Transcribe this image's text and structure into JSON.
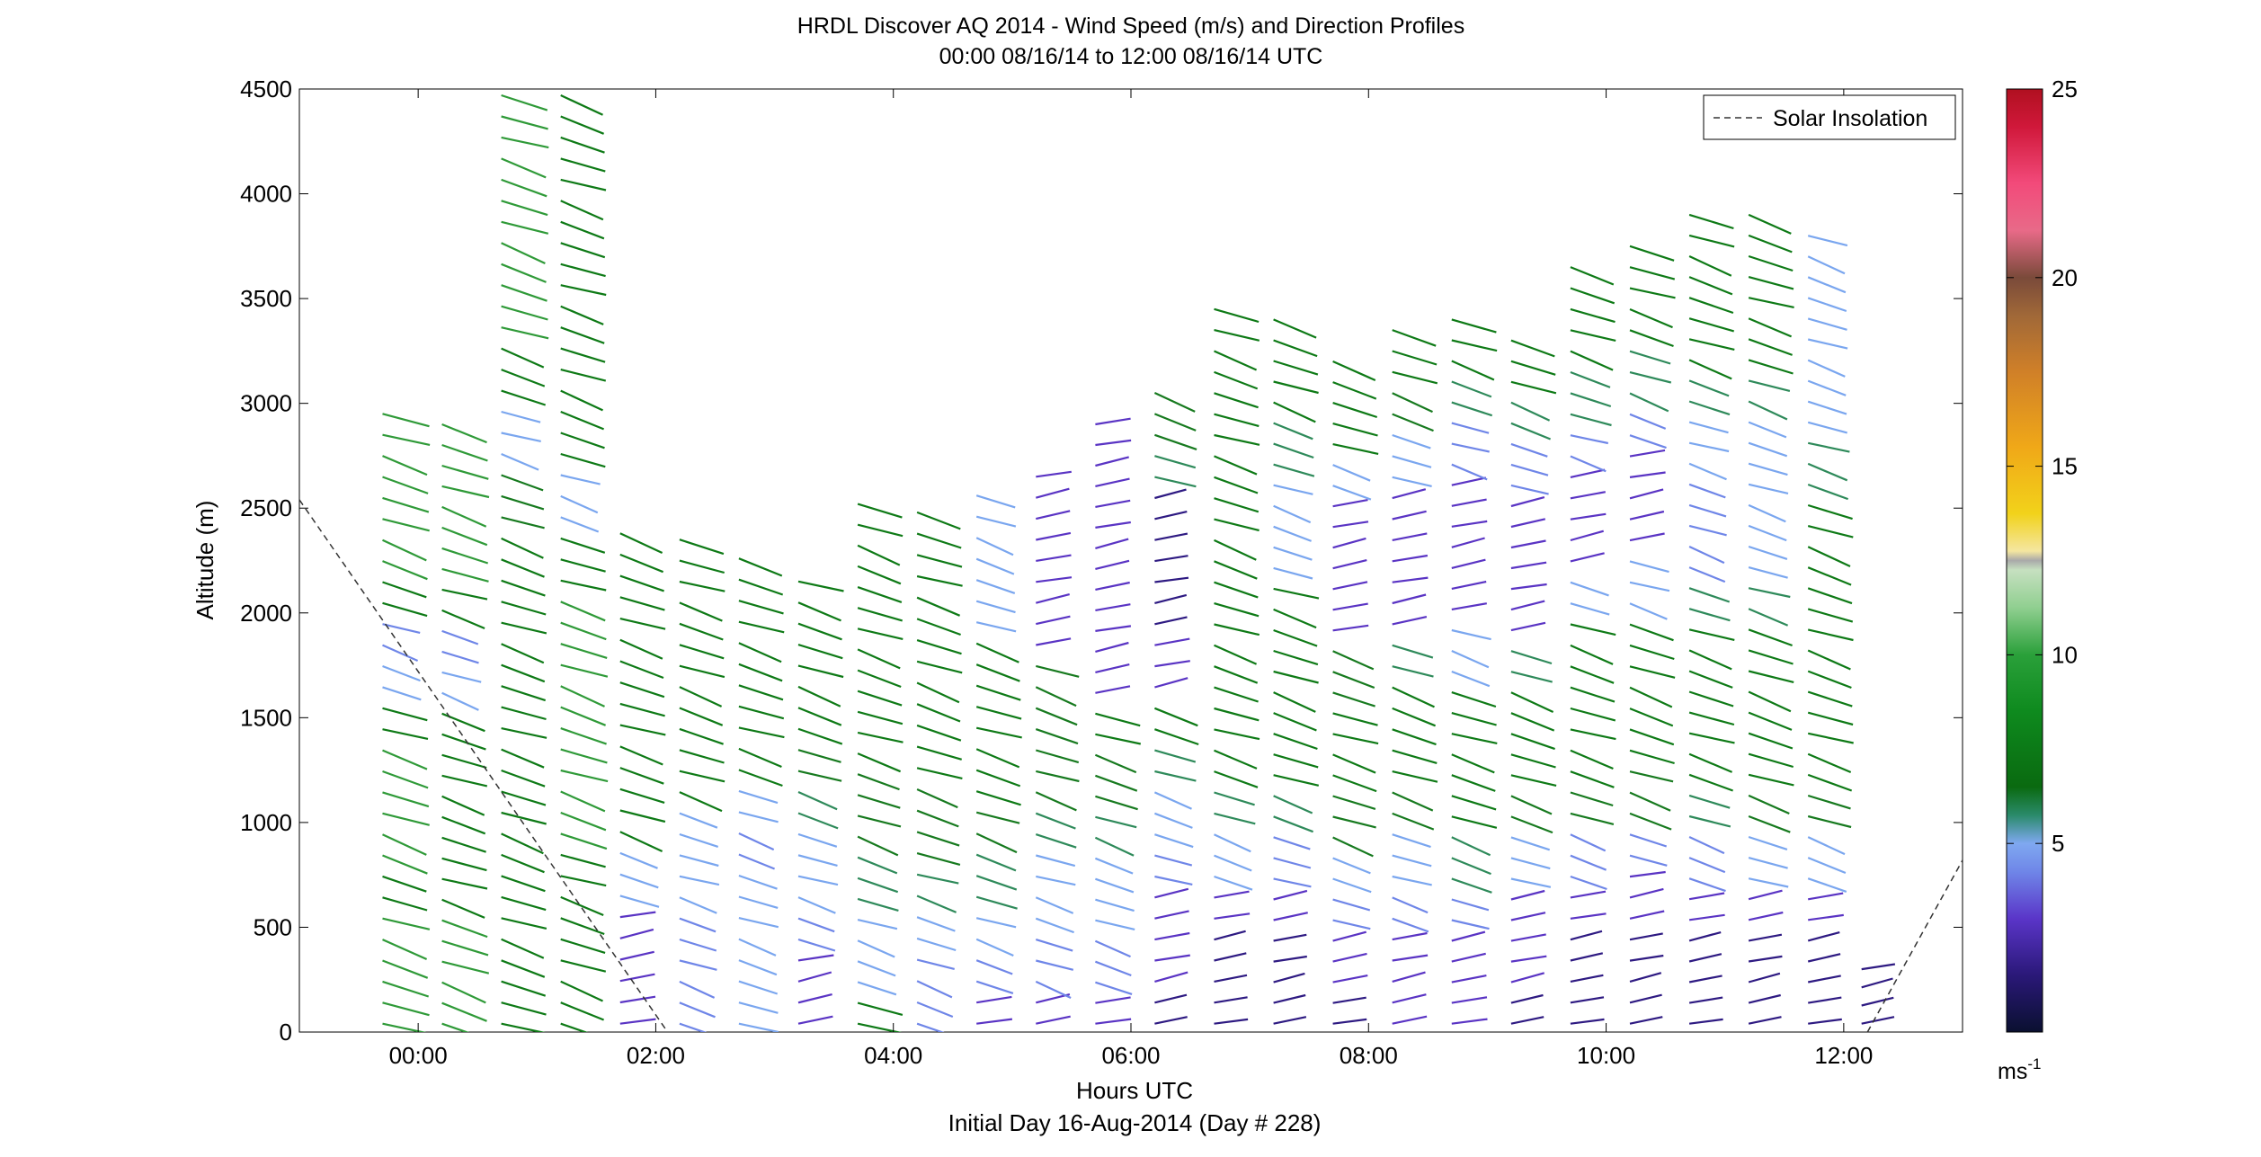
{
  "chart_data": {
    "type": "wind-barb-profile",
    "title": "HRDL Discover AQ 2014 - Wind Speed (m/s) and Direction Profiles",
    "subtitle": "00:00 08/16/14 to 12:00 08/16/14  UTC",
    "xlabel": "Hours UTC",
    "xlabel2": "Initial Day 16-Aug-2014 (Day # 228)",
    "ylabel": "Altitude (m)",
    "xlim": [
      -1.0,
      13.0
    ],
    "ylim": [
      0,
      4500
    ],
    "x_ticks": [
      0,
      2,
      4,
      6,
      8,
      10,
      12
    ],
    "x_tick_labels": [
      "00:00",
      "02:00",
      "04:00",
      "06:00",
      "08:00",
      "10:00",
      "12:00"
    ],
    "y_ticks": [
      0,
      500,
      1000,
      1500,
      2000,
      2500,
      3000,
      3500,
      4000,
      4500
    ],
    "y_tick_labels": [
      "0",
      "500",
      "1000",
      "1500",
      "2000",
      "2500",
      "3000",
      "3500",
      "4000",
      "4500"
    ],
    "legend": {
      "label": "Solar Insolation",
      "position": "top-right",
      "style": "dashed"
    },
    "colorbar": {
      "range": [
        0,
        25
      ],
      "ticks": [
        5,
        10,
        15,
        20,
        25
      ],
      "tick_labels": [
        "5",
        "10",
        "15",
        "20",
        "25"
      ],
      "unit_label": "ms",
      "unit_exp": "-1"
    },
    "solar_insolation": {
      "x": [
        -1.0,
        2.1,
        12.2,
        13.0
      ],
      "y": [
        2540,
        0,
        0,
        820
      ]
    },
    "profiles": [
      {
        "t": -0.3,
        "top": 2950,
        "speeds": [
          9,
          9,
          9,
          8,
          9,
          9,
          9,
          8,
          5,
          4,
          8,
          9,
          9,
          9,
          9
        ]
      },
      {
        "t": 0.2,
        "top": 2900,
        "speeds": [
          9,
          9,
          9,
          8,
          8,
          8,
          8,
          8,
          5,
          4,
          8,
          9,
          9,
          9,
          9
        ]
      },
      {
        "t": 0.7,
        "top": 4470,
        "speeds": [
          8,
          8,
          8,
          8,
          8,
          8,
          8,
          8,
          7,
          5,
          8,
          9,
          9,
          9,
          9
        ]
      },
      {
        "t": 1.2,
        "top": 4470,
        "speeds": [
          8,
          8,
          8,
          9,
          9,
          9,
          9,
          8,
          5,
          8,
          8,
          8,
          8,
          8,
          8
        ]
      },
      {
        "t": 1.7,
        "top": 2380,
        "speeds": [
          3,
          3,
          3,
          5,
          8,
          8,
          8,
          8,
          8,
          8,
          8
        ]
      },
      {
        "t": 2.2,
        "top": 2350,
        "speeds": [
          4,
          4,
          4,
          5,
          5,
          8,
          8,
          8,
          8,
          8,
          8
        ]
      },
      {
        "t": 2.7,
        "top": 2260,
        "speeds": [
          5,
          5,
          5,
          5,
          4,
          5,
          8,
          8,
          8,
          8,
          8
        ]
      },
      {
        "t": 3.2,
        "top": 2150,
        "speeds": [
          3,
          3,
          4,
          5,
          5,
          6,
          7,
          8,
          8,
          8,
          8
        ]
      },
      {
        "t": 3.7,
        "top": 2520,
        "speeds": [
          8,
          5,
          5,
          6,
          7,
          7,
          8,
          8,
          8,
          8,
          8,
          8
        ]
      },
      {
        "t": 4.2,
        "top": 2480,
        "speeds": [
          4,
          4,
          5,
          6,
          7,
          7,
          8,
          8,
          8,
          8,
          8,
          8
        ]
      },
      {
        "t": 4.7,
        "top": 2560,
        "speeds": [
          3,
          4,
          5,
          6,
          7,
          8,
          8,
          8,
          8,
          5,
          5,
          5
        ]
      },
      {
        "t": 5.2,
        "top": 2650,
        "speeds": [
          3,
          4,
          5,
          5,
          6,
          7,
          7,
          7,
          3,
          3,
          3,
          3
        ]
      },
      {
        "t": 5.7,
        "top": 2900,
        "speeds": [
          3,
          4,
          5,
          5,
          6,
          7,
          8,
          3,
          3,
          3,
          3,
          3,
          3
        ]
      },
      {
        "t": 6.2,
        "top": 3050,
        "speeds": [
          2,
          3,
          3,
          4,
          5,
          6,
          8,
          3,
          2,
          2,
          2,
          6,
          7
        ]
      },
      {
        "t": 6.7,
        "top": 3450,
        "speeds": [
          2,
          2,
          3,
          5,
          6,
          8,
          8,
          8,
          8,
          8,
          8,
          8,
          8,
          8
        ]
      },
      {
        "t": 7.2,
        "top": 3400,
        "speeds": [
          2,
          2,
          3,
          4,
          6,
          8,
          8,
          8,
          8,
          5,
          5,
          6,
          8,
          8
        ]
      },
      {
        "t": 7.7,
        "top": 3200,
        "speeds": [
          2,
          3,
          4,
          5,
          7,
          8,
          8,
          7,
          3,
          3,
          3,
          5,
          8,
          8
        ]
      },
      {
        "t": 8.2,
        "top": 3350,
        "speeds": [
          3,
          3,
          4,
          5,
          7,
          8,
          8,
          6,
          3,
          3,
          3,
          5,
          7,
          8
        ]
      },
      {
        "t": 8.7,
        "top": 3400,
        "speeds": [
          3,
          3,
          4,
          6,
          8,
          8,
          8,
          5,
          3,
          3,
          3,
          4,
          6,
          8
        ]
      },
      {
        "t": 9.2,
        "top": 3300,
        "speeds": [
          2,
          3,
          3,
          5,
          7,
          8,
          8,
          6,
          3,
          3,
          3,
          4,
          6,
          8
        ]
      },
      {
        "t": 9.7,
        "top": 3650,
        "speeds": [
          2,
          2,
          3,
          4,
          7,
          8,
          8,
          8,
          5,
          3,
          3,
          4,
          6,
          8,
          8
        ]
      },
      {
        "t": 10.2,
        "top": 3750,
        "speeds": [
          2,
          2,
          3,
          4,
          7,
          8,
          8,
          8,
          5,
          3,
          3,
          4,
          6,
          8,
          8
        ]
      },
      {
        "t": 10.7,
        "top": 3900,
        "speeds": [
          2,
          2,
          3,
          4,
          6,
          8,
          8,
          8,
          6,
          4,
          4,
          5,
          6,
          8,
          8,
          8
        ]
      },
      {
        "t": 11.2,
        "top": 3900,
        "speeds": [
          2,
          2,
          3,
          5,
          7,
          8,
          8,
          8,
          6,
          5,
          5,
          5,
          6,
          8,
          8,
          8
        ]
      },
      {
        "t": 11.7,
        "top": 3800,
        "speeds": [
          2,
          2,
          3,
          5,
          7,
          8,
          8,
          8,
          8,
          8,
          8,
          6,
          5,
          5,
          5,
          5
        ]
      },
      {
        "t": 12.15,
        "top": 300,
        "speeds": [
          2,
          2
        ]
      }
    ]
  }
}
